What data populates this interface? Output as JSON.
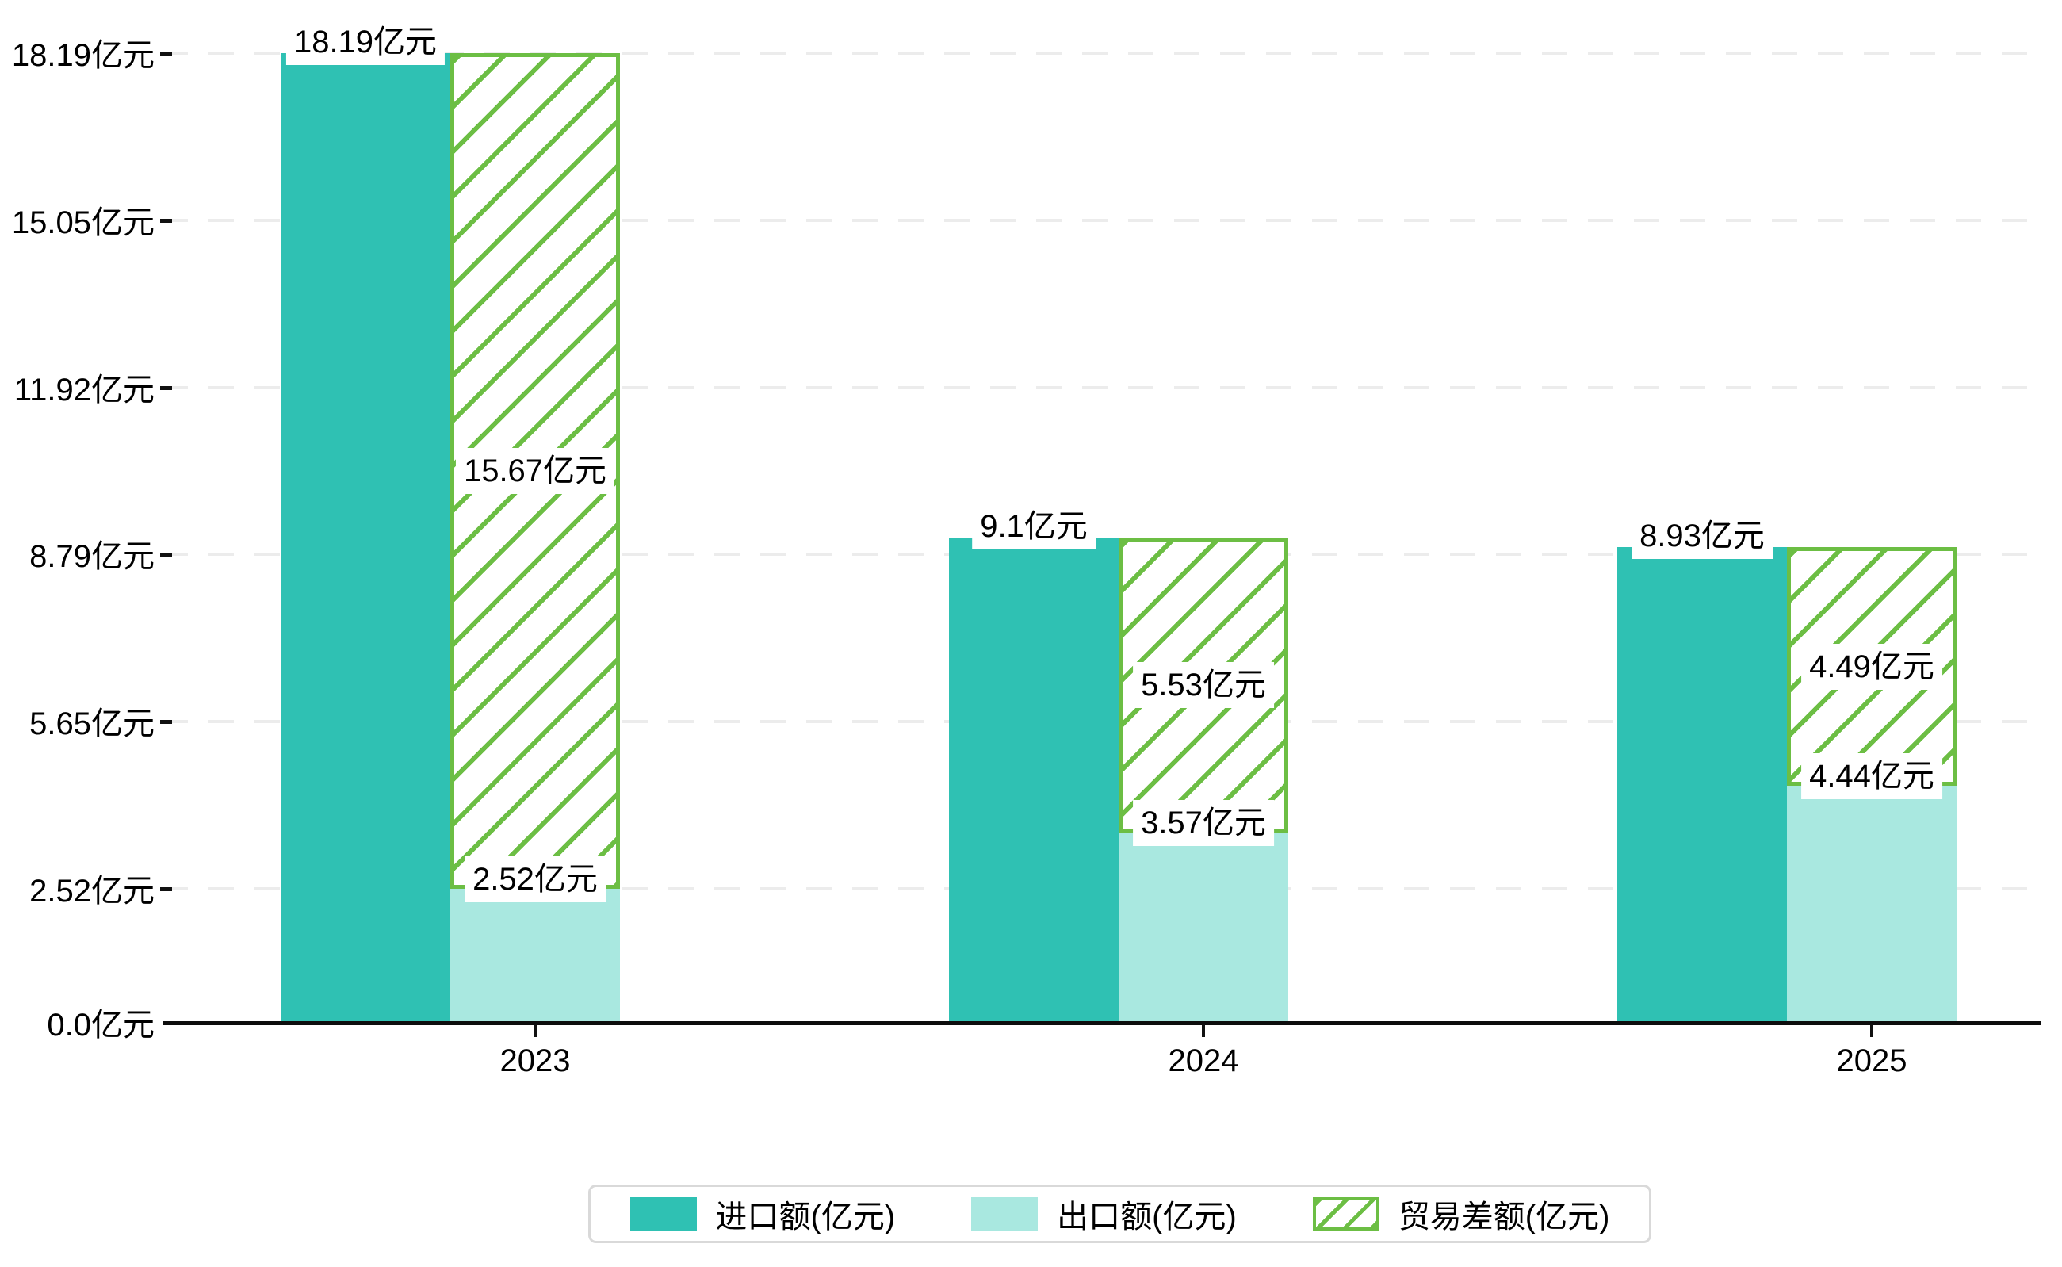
{
  "chart_data": {
    "type": "bar",
    "title": "",
    "categories": [
      "2023",
      "2024",
      "2025"
    ],
    "series": [
      {
        "name": "进口额(亿元)",
        "values": [
          18.19,
          9.1,
          8.93
        ],
        "value_labels": [
          "18.19亿元",
          "9.1亿元",
          "8.93亿元"
        ],
        "color": "#2fc1b3",
        "style": "solid",
        "label_position": "above-top"
      },
      {
        "name": "出口额(亿元)",
        "values": [
          2.52,
          3.57,
          4.44
        ],
        "value_labels": [
          "2.52亿元",
          "3.57亿元",
          "4.44亿元"
        ],
        "color": "#a9e8e0",
        "style": "solid",
        "label_position": "above-top"
      },
      {
        "name": "贸易差额(亿元)",
        "values": [
          15.67,
          5.53,
          4.49
        ],
        "value_labels": [
          "15.67亿元",
          "5.53亿元",
          "4.49亿元"
        ],
        "color": "#6cbe44",
        "style": "hatched-diagonal",
        "stacked_on": "出口额(亿元)",
        "label_position": "segment-middle"
      }
    ],
    "yticks": [
      {
        "value": 0,
        "label": "0.0亿元"
      },
      {
        "value": 2.52,
        "label": "2.52亿元"
      },
      {
        "value": 5.65,
        "label": "5.65亿元"
      },
      {
        "value": 8.79,
        "label": "8.79亿元"
      },
      {
        "value": 11.92,
        "label": "11.92亿元"
      },
      {
        "value": 15.05,
        "label": "15.05亿元"
      },
      {
        "value": 18.19,
        "label": "18.19亿元"
      }
    ],
    "ylim": [
      0,
      18.19
    ],
    "unit": "亿元",
    "grid": "horizontal-dashed",
    "legend_position": "bottom-center"
  },
  "colors": {
    "import_fill": "#2fc1b3",
    "export_fill": "#a9e8e0",
    "balance_hatch": "#6cbe44",
    "gridline": "#ececec",
    "axis_line": "#0d0d0d",
    "label_text": "#000000",
    "legend_border": "#d9d9d9",
    "background": "#ffffff"
  }
}
